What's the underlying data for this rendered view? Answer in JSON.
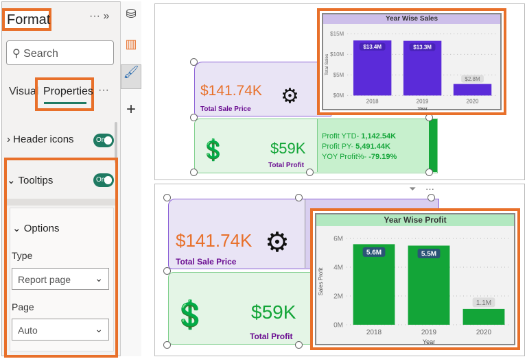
{
  "format_pane": {
    "title": "Format",
    "more": "···",
    "collapse": "»",
    "search_placeholder": "Search",
    "tabs": [
      "Visual",
      "Properties"
    ],
    "tab_more": "···",
    "active_tab": "Properties",
    "sections": [
      {
        "label": "Header icons",
        "toggle": "On",
        "expanded": false
      },
      {
        "label": "Tooltips",
        "toggle": "On",
        "expanded": true
      }
    ],
    "options": {
      "label": "Options",
      "type_label": "Type",
      "type_value": "Report page",
      "page_label": "Page",
      "page_value": "Auto"
    }
  },
  "sidebar_icons": [
    "data-cylinder-icon",
    "build-visual-icon",
    "format-brush-icon",
    "add-icon"
  ],
  "top_canvas": {
    "sale": {
      "value": "$141.74K",
      "label": "Total Sale Price"
    },
    "profit": {
      "value": "$59K",
      "label": "Total Profit",
      "details": [
        {
          "label": "Profit YTD- ",
          "value": "1,142.54K"
        },
        {
          "label": "Profit PY- ",
          "value": "5,491.44K"
        },
        {
          "label": "YOY Profit%- ",
          "value": "-79.19%"
        }
      ]
    }
  },
  "bottom_canvas": {
    "sale": {
      "value": "$141.74K",
      "label": "Total Sale Price"
    },
    "profit": {
      "value": "$59K",
      "label": "Total Profit"
    }
  },
  "colors": {
    "highlight": "#e8702a",
    "sales_bar": "#5b2bd9",
    "profit_bar": "#13a538",
    "sale_value": "#e8702a",
    "profit_value": "#13a538",
    "label_purple": "#6a0d91"
  },
  "chart_data": [
    {
      "type": "bar",
      "title": "Year Wise Sales",
      "xlabel": "Year",
      "ylabel": "Total Sales",
      "categories": [
        "2018",
        "2019",
        "2020"
      ],
      "values": [
        13.4,
        13.3,
        2.8
      ],
      "data_labels": [
        "$13.4M",
        "$13.3M",
        "$2.8M"
      ],
      "yticks": [
        "$0M",
        "$5M",
        "$10M",
        "$15M"
      ],
      "ylim": [
        0,
        15
      ],
      "unit": "M",
      "grid": true
    },
    {
      "type": "bar",
      "title": "Year Wise Profit",
      "xlabel": "Year",
      "ylabel": "Sales Profit",
      "categories": [
        "2018",
        "2019",
        "2020"
      ],
      "values": [
        5.6,
        5.5,
        1.1
      ],
      "data_labels": [
        "5.6M",
        "5.5M",
        "1.1M"
      ],
      "yticks": [
        "0M",
        "2M",
        "4M",
        "6M"
      ],
      "ylim": [
        0,
        6
      ],
      "unit": "M",
      "grid": true
    }
  ]
}
